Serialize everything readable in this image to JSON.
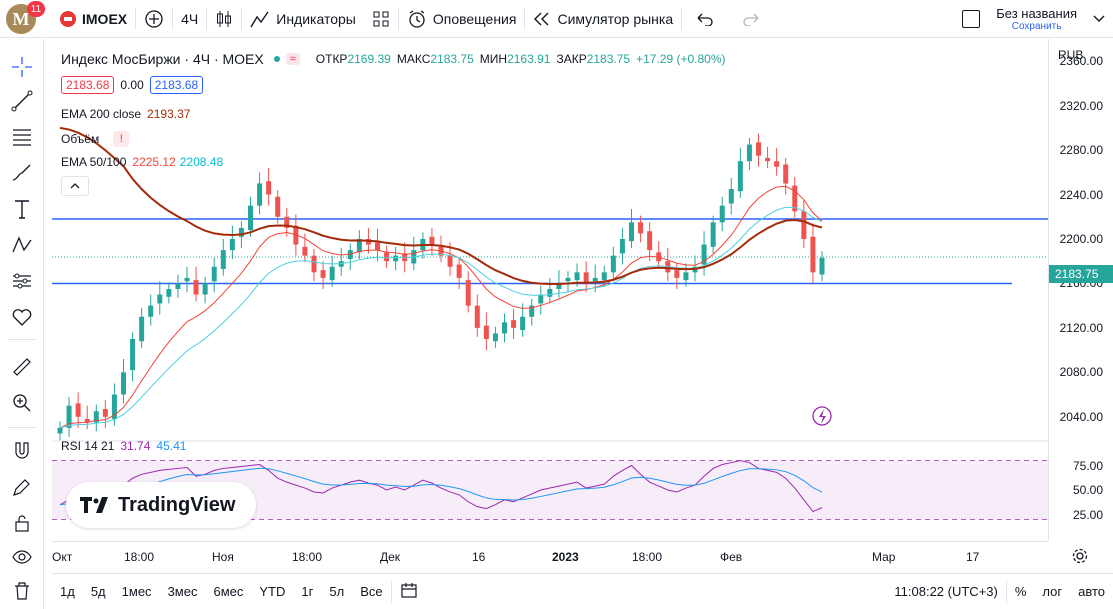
{
  "header": {
    "ticker": "IMOEX",
    "badge": "11",
    "logo_letter": "M",
    "interval": "4Ч",
    "indicators_label": "Индикаторы",
    "alerts_label": "Оповещения",
    "replay_label": "Симулятор рынка",
    "layout_name": "Без названия",
    "saved_label": "Сохранить"
  },
  "legend": {
    "symbol_title": "Индекс МосБиржи · 4Ч · MOEX",
    "open_label": "ОТКР",
    "open": "2169.39",
    "high_label": "МАКС",
    "high": "2183.75",
    "low_label": "МИН",
    "low": "2163.91",
    "close_label": "ЗАКР",
    "close": "2183.75",
    "change": "+17.29 (+0.80%)",
    "bid": "2183.68",
    "spread": "0.00",
    "ask": "2183.68",
    "ema200_label": "EMA 200 close",
    "ema200_value": "2193.37",
    "volume_label": "Объём",
    "ema50_label": "EMA 50/100",
    "ema50_value": "2225.12",
    "ema100_value": "2208.48",
    "rsi_label": "RSI 14 21",
    "rsi_value1": "31.74",
    "rsi_value2": "45.41"
  },
  "price_scale": {
    "currency": "RUB",
    "ticks": [
      "2360.00",
      "2320.00",
      "2280.00",
      "2240.00",
      "2200.00",
      "2160.00",
      "2120.00",
      "2080.00",
      "2040.00"
    ],
    "current_price": "2183.75",
    "rsi_ticks": [
      "75.00",
      "50.00",
      "25.00"
    ]
  },
  "time_axis": {
    "ticks": [
      "Окт",
      "18:00",
      "Ноя",
      "18:00",
      "Дек",
      "16",
      "2023",
      "18:00",
      "Фев",
      "Мар",
      "17"
    ]
  },
  "bottom": {
    "ranges": [
      "1д",
      "5д",
      "1мес",
      "3мес",
      "6мес",
      "YTD",
      "1г",
      "5л",
      "Все"
    ],
    "clock": "11:08:22 (UTC+3)",
    "percent": "%",
    "log": "лог",
    "auto": "авто"
  },
  "watermark": "TradingView",
  "colors": {
    "up": "#26a69a",
    "down": "#ef5350",
    "ema200": "#a52a0a",
    "ema50": "#f44336",
    "ema100": "#4dd0e1",
    "level": "#2962ff",
    "rsi": "#9c27b0",
    "rsi_ma": "#2196f3"
  },
  "chart_data": {
    "type": "candlestick",
    "title": "Индекс МосБиржи · 4Ч · MOEX",
    "ylim": [
      2020,
      2380
    ],
    "levels": [
      2218,
      2160
    ],
    "close_series": [
      2030,
      2050,
      2040,
      2035,
      2045,
      2040,
      2060,
      2080,
      2110,
      2130,
      2140,
      2150,
      2155,
      2160,
      2165,
      2150,
      2160,
      2175,
      2190,
      2200,
      2210,
      2230,
      2250,
      2240,
      2220,
      2210,
      2195,
      2185,
      2170,
      2165,
      2175,
      2180,
      2190,
      2200,
      2195,
      2190,
      2180,
      2185,
      2180,
      2190,
      2200,
      2195,
      2185,
      2175,
      2165,
      2140,
      2120,
      2110,
      2115,
      2125,
      2120,
      2130,
      2140,
      2150,
      2155,
      2160,
      2165,
      2170,
      2160,
      2165,
      2170,
      2185,
      2200,
      2215,
      2205,
      2190,
      2180,
      2170,
      2165,
      2170,
      2175,
      2195,
      2215,
      2230,
      2245,
      2270,
      2285,
      2275,
      2270,
      2265,
      2250,
      2225,
      2200,
      2170,
      2183
    ],
    "rsi_series": [
      35,
      40,
      38,
      36,
      42,
      40,
      48,
      55,
      62,
      66,
      68,
      70,
      71,
      72,
      73,
      64,
      66,
      70,
      72,
      73,
      74,
      75,
      76,
      70,
      62,
      58,
      55,
      52,
      48,
      47,
      52,
      55,
      58,
      60,
      57,
      55,
      50,
      53,
      50,
      55,
      60,
      57,
      52,
      48,
      45,
      38,
      33,
      31,
      35,
      40,
      38,
      42,
      46,
      50,
      52,
      54,
      56,
      58,
      52,
      54,
      56,
      64,
      70,
      75,
      66,
      58,
      54,
      50,
      48,
      52,
      55,
      64,
      72,
      76,
      78,
      80,
      78,
      72,
      70,
      68,
      62,
      52,
      40,
      28,
      32
    ]
  }
}
